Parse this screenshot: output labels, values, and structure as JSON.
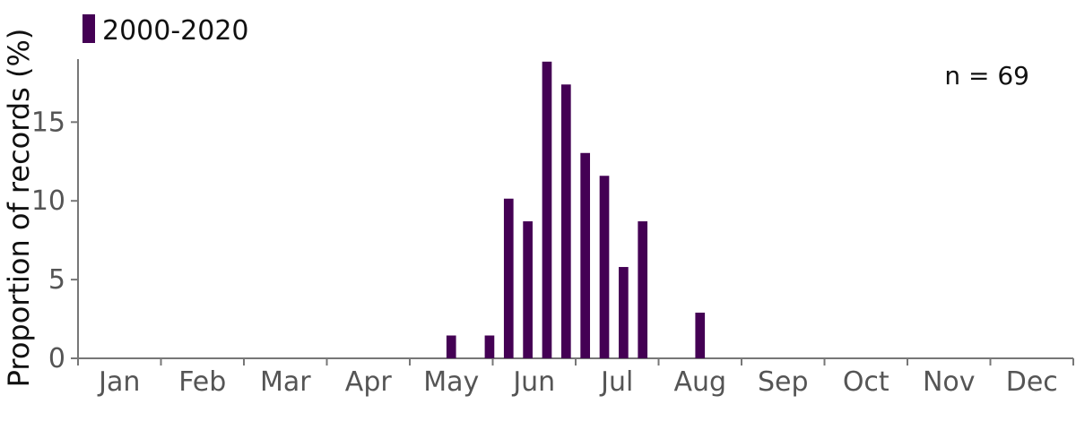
{
  "chart_data": {
    "type": "bar",
    "ylabel": "Proportion of records (%)",
    "xlabel": "",
    "ylim": [
      0,
      19
    ],
    "yticks": [
      0,
      5,
      10,
      15
    ],
    "months": [
      "Jan",
      "Feb",
      "Mar",
      "Apr",
      "May",
      "Jun",
      "Jul",
      "Aug",
      "Sep",
      "Oct",
      "Nov",
      "Dec"
    ],
    "bin_unit": "week",
    "series": [
      {
        "name": "2000-2020",
        "color": "#440154",
        "bars": [
          {
            "week": 20,
            "value": 1.45
          },
          {
            "week": 22,
            "value": 1.45
          },
          {
            "week": 23,
            "value": 10.14
          },
          {
            "week": 24,
            "value": 8.7
          },
          {
            "week": 25,
            "value": 18.84
          },
          {
            "week": 26,
            "value": 17.39
          },
          {
            "week": 27,
            "value": 13.04
          },
          {
            "week": 28,
            "value": 11.59
          },
          {
            "week": 29,
            "value": 5.8
          },
          {
            "week": 30,
            "value": 8.7
          },
          {
            "week": 33,
            "value": 2.9
          }
        ]
      }
    ],
    "annotation": "n = 69",
    "legend_position": "top-left",
    "grid": false
  }
}
